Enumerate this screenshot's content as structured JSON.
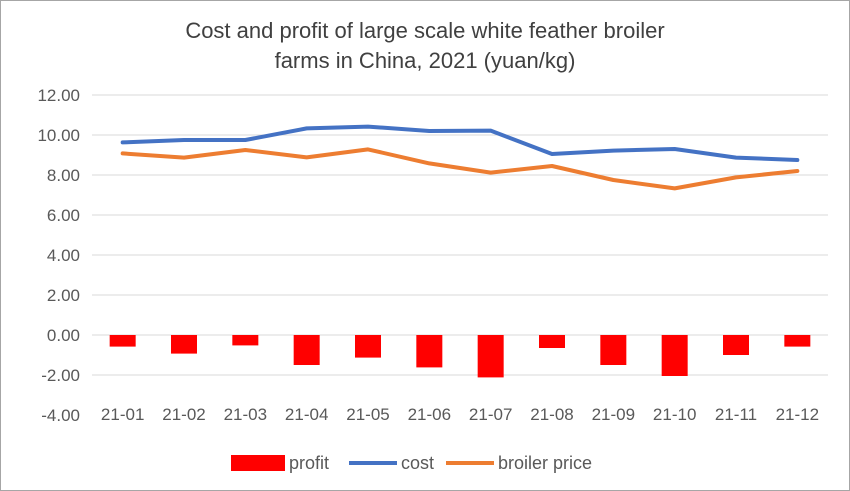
{
  "chart_data": {
    "type": "bar+line",
    "title": [
      "Cost and profit of large scale white feather broiler",
      "farms in China, 2021 (yuan/kg)"
    ],
    "categories": [
      "21-01",
      "21-02",
      "21-03",
      "21-04",
      "21-05",
      "21-06",
      "21-07",
      "21-08",
      "21-09",
      "21-10",
      "21-11",
      "21-12"
    ],
    "series": [
      {
        "name": "profit",
        "type": "bar",
        "color": "#ff0000",
        "values": [
          -0.58,
          -0.93,
          -0.52,
          -1.5,
          -1.13,
          -1.62,
          -2.12,
          -0.65,
          -1.5,
          -2.05,
          -1.0,
          -0.58
        ]
      },
      {
        "name": "cost",
        "type": "line",
        "color": "#4472c4",
        "values": [
          9.63,
          9.75,
          9.75,
          10.33,
          10.42,
          10.2,
          10.22,
          9.05,
          9.22,
          9.3,
          8.87,
          8.75
        ]
      },
      {
        "name": "broiler price",
        "type": "line",
        "color": "#ed7d31",
        "values": [
          9.08,
          8.87,
          9.25,
          8.88,
          9.28,
          8.58,
          8.12,
          8.45,
          7.75,
          7.33,
          7.88,
          8.2
        ]
      }
    ],
    "yticks": [
      "12.00",
      "10.00",
      "8.00",
      "6.00",
      "4.00",
      "2.00",
      "0.00",
      "-2.00",
      "-4.00"
    ],
    "ylim": [
      -4,
      12
    ],
    "grid": true,
    "legend": "bottom",
    "xlabel": "",
    "ylabel": ""
  }
}
